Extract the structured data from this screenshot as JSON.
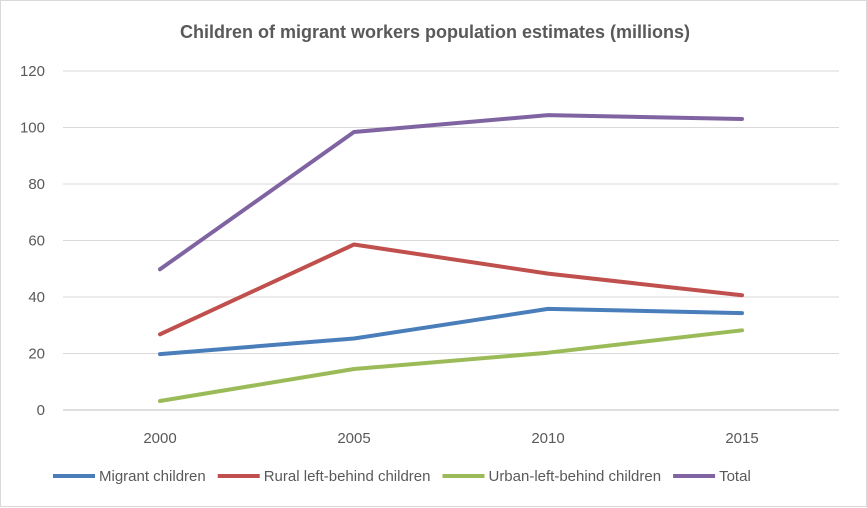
{
  "chart_data": {
    "type": "line",
    "title": "Children of migrant workers population estimates (millions)",
    "xlabel": "",
    "ylabel": "",
    "categories": [
      "2000",
      "2005",
      "2010",
      "2015"
    ],
    "ylim": [
      0,
      120
    ],
    "yticks": [
      "0",
      "20",
      "40",
      "60",
      "80",
      "100",
      "120"
    ],
    "grid": true,
    "legend": "bottom",
    "series": [
      {
        "name": "Migrant children",
        "color": "#4a7ebb",
        "values": [
          19.8,
          25.3,
          35.8,
          34.3
        ]
      },
      {
        "name": "Rural left-behind children",
        "color": "#c0504d",
        "values": [
          26.8,
          58.6,
          48.3,
          40.6
        ]
      },
      {
        "name": "Urban-left-behind children",
        "color": "#9bbb59",
        "values": [
          3.2,
          14.5,
          20.3,
          28.2
        ]
      },
      {
        "name": "Total",
        "color": "#8064a2",
        "values": [
          49.8,
          98.4,
          104.4,
          103.0
        ]
      }
    ]
  }
}
